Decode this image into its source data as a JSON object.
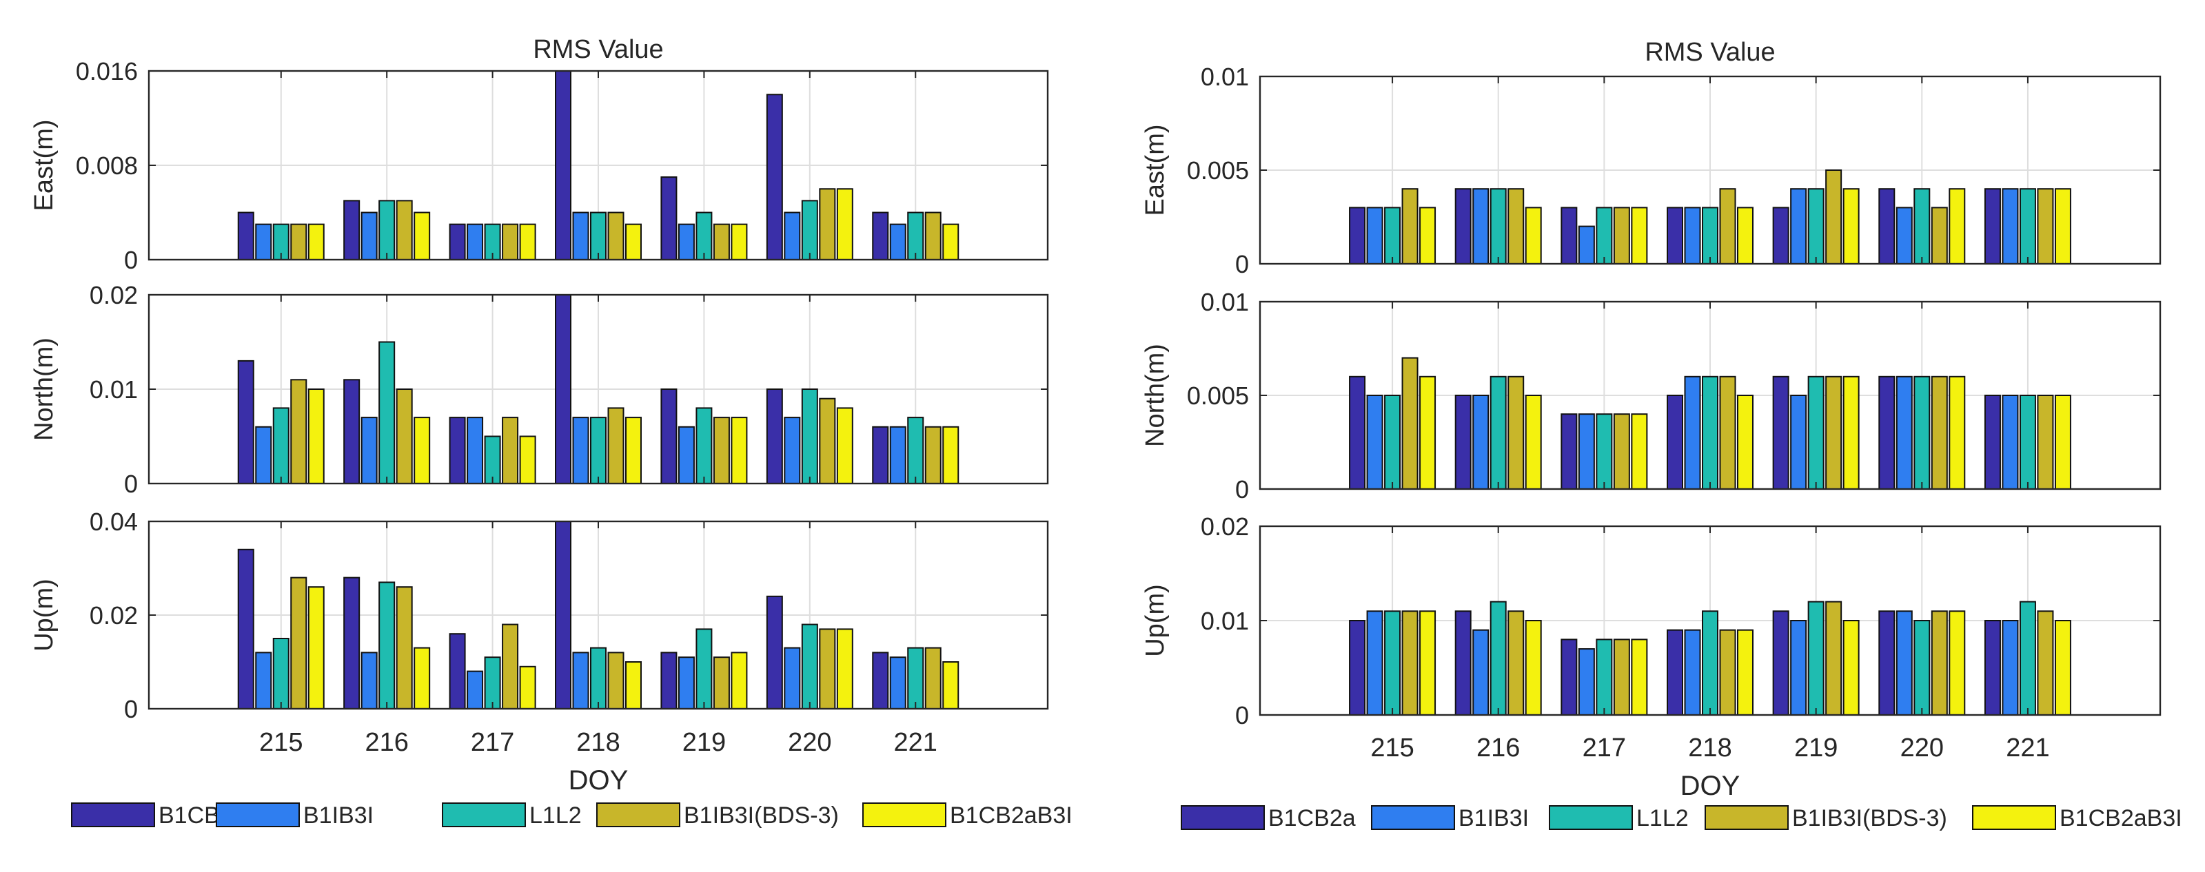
{
  "chart_data": [
    {
      "type": "bar",
      "title": "RMS Value",
      "xlabel": "DOY",
      "categories": [
        "215",
        "216",
        "217",
        "218",
        "219",
        "220",
        "221"
      ],
      "legend": {
        "placement": "bottom",
        "entries": [
          "B1CB2a",
          "B1IB3I",
          "L1L2",
          "B1IB3I(BDS-3)",
          "B1CB2aB3I"
        ]
      },
      "colors": [
        "#3a2fa8",
        "#2f7ef0",
        "#1fbcb0",
        "#c8b62a",
        "#f4f20e"
      ],
      "grid": true,
      "panels": [
        {
          "ylabel": "East(m)",
          "ylim": [
            0,
            0.016
          ],
          "yticks": [
            "0",
            "0.008",
            "0.016"
          ],
          "series": [
            {
              "name": "B1CB2a",
              "values": [
                0.004,
                0.005,
                0.003,
                0.016,
                0.007,
                0.014,
                0.004
              ]
            },
            {
              "name": "B1IB3I",
              "values": [
                0.003,
                0.004,
                0.003,
                0.004,
                0.003,
                0.004,
                0.003
              ]
            },
            {
              "name": "L1L2",
              "values": [
                0.003,
                0.005,
                0.003,
                0.004,
                0.004,
                0.005,
                0.004
              ]
            },
            {
              "name": "B1IB3I(BDS-3)",
              "values": [
                0.003,
                0.005,
                0.003,
                0.004,
                0.003,
                0.006,
                0.004
              ]
            },
            {
              "name": "B1CB2aB3I",
              "values": [
                0.003,
                0.004,
                0.003,
                0.003,
                0.003,
                0.006,
                0.003
              ]
            }
          ]
        },
        {
          "ylabel": "North(m)",
          "ylim": [
            0,
            0.02
          ],
          "yticks": [
            "0",
            "0.01",
            "0.02"
          ],
          "series": [
            {
              "name": "B1CB2a",
              "values": [
                0.013,
                0.011,
                0.007,
                0.02,
                0.01,
                0.01,
                0.006
              ]
            },
            {
              "name": "B1IB3I",
              "values": [
                0.006,
                0.007,
                0.007,
                0.007,
                0.006,
                0.007,
                0.006
              ]
            },
            {
              "name": "L1L2",
              "values": [
                0.008,
                0.015,
                0.005,
                0.007,
                0.008,
                0.01,
                0.007
              ]
            },
            {
              "name": "B1IB3I(BDS-3)",
              "values": [
                0.011,
                0.01,
                0.007,
                0.008,
                0.007,
                0.009,
                0.006
              ]
            },
            {
              "name": "B1CB2aB3I",
              "values": [
                0.01,
                0.007,
                0.005,
                0.007,
                0.007,
                0.008,
                0.006
              ]
            }
          ]
        },
        {
          "ylabel": "Up(m)",
          "ylim": [
            0,
            0.04
          ],
          "yticks": [
            "0",
            "0.02",
            "0.04"
          ],
          "series": [
            {
              "name": "B1CB2a",
              "values": [
                0.034,
                0.028,
                0.016,
                0.04,
                0.012,
                0.024,
                0.012
              ]
            },
            {
              "name": "B1IB3I",
              "values": [
                0.012,
                0.012,
                0.008,
                0.012,
                0.011,
                0.013,
                0.011
              ]
            },
            {
              "name": "L1L2",
              "values": [
                0.015,
                0.027,
                0.011,
                0.013,
                0.017,
                0.018,
                0.013
              ]
            },
            {
              "name": "B1IB3I(BDS-3)",
              "values": [
                0.028,
                0.026,
                0.018,
                0.012,
                0.011,
                0.017,
                0.013
              ]
            },
            {
              "name": "B1CB2aB3I",
              "values": [
                0.026,
                0.013,
                0.009,
                0.01,
                0.012,
                0.017,
                0.01
              ]
            }
          ]
        }
      ]
    },
    {
      "type": "bar",
      "title": "RMS Value",
      "xlabel": "DOY",
      "categories": [
        "215",
        "216",
        "217",
        "218",
        "219",
        "220",
        "221"
      ],
      "legend": {
        "placement": "bottom",
        "entries": [
          "B1CB2a",
          "B1IB3I",
          "L1L2",
          "B1IB3I(BDS-3)",
          "B1CB2aB3I"
        ]
      },
      "colors": [
        "#3a2fa8",
        "#2f7ef0",
        "#1fbcb0",
        "#c8b62a",
        "#f4f20e"
      ],
      "grid": true,
      "panels": [
        {
          "ylabel": "East(m)",
          "ylim": [
            0,
            0.01
          ],
          "yticks": [
            "0",
            "0.005",
            "0.01"
          ],
          "series": [
            {
              "name": "B1CB2a",
              "values": [
                0.003,
                0.004,
                0.003,
                0.003,
                0.003,
                0.004,
                0.004
              ]
            },
            {
              "name": "B1IB3I",
              "values": [
                0.003,
                0.004,
                0.002,
                0.003,
                0.004,
                0.003,
                0.004
              ]
            },
            {
              "name": "L1L2",
              "values": [
                0.003,
                0.004,
                0.003,
                0.003,
                0.004,
                0.004,
                0.004
              ]
            },
            {
              "name": "B1IB3I(BDS-3)",
              "values": [
                0.004,
                0.004,
                0.003,
                0.004,
                0.005,
                0.003,
                0.004
              ]
            },
            {
              "name": "B1CB2aB3I",
              "values": [
                0.003,
                0.003,
                0.003,
                0.003,
                0.004,
                0.004,
                0.004
              ]
            }
          ]
        },
        {
          "ylabel": "North(m)",
          "ylim": [
            0,
            0.01
          ],
          "yticks": [
            "0",
            "0.005",
            "0.01"
          ],
          "series": [
            {
              "name": "B1CB2a",
              "values": [
                0.006,
                0.005,
                0.004,
                0.005,
                0.006,
                0.006,
                0.005
              ]
            },
            {
              "name": "B1IB3I",
              "values": [
                0.005,
                0.005,
                0.004,
                0.006,
                0.005,
                0.006,
                0.005
              ]
            },
            {
              "name": "L1L2",
              "values": [
                0.005,
                0.006,
                0.004,
                0.006,
                0.006,
                0.006,
                0.005
              ]
            },
            {
              "name": "B1IB3I(BDS-3)",
              "values": [
                0.007,
                0.006,
                0.004,
                0.006,
                0.006,
                0.006,
                0.005
              ]
            },
            {
              "name": "B1CB2aB3I",
              "values": [
                0.006,
                0.005,
                0.004,
                0.005,
                0.006,
                0.006,
                0.005
              ]
            }
          ]
        },
        {
          "ylabel": "Up(m)",
          "ylim": [
            0,
            0.02
          ],
          "yticks": [
            "0",
            "0.01",
            "0.02"
          ],
          "series": [
            {
              "name": "B1CB2a",
              "values": [
                0.01,
                0.011,
                0.008,
                0.009,
                0.011,
                0.011,
                0.01
              ]
            },
            {
              "name": "B1IB3I",
              "values": [
                0.011,
                0.009,
                0.007,
                0.009,
                0.01,
                0.011,
                0.01
              ]
            },
            {
              "name": "L1L2",
              "values": [
                0.011,
                0.012,
                0.008,
                0.011,
                0.012,
                0.01,
                0.012
              ]
            },
            {
              "name": "B1IB3I(BDS-3)",
              "values": [
                0.011,
                0.011,
                0.008,
                0.009,
                0.012,
                0.011,
                0.011
              ]
            },
            {
              "name": "B1CB2aB3I",
              "values": [
                0.011,
                0.01,
                0.008,
                0.009,
                0.01,
                0.011,
                0.01
              ]
            }
          ]
        }
      ]
    }
  ]
}
